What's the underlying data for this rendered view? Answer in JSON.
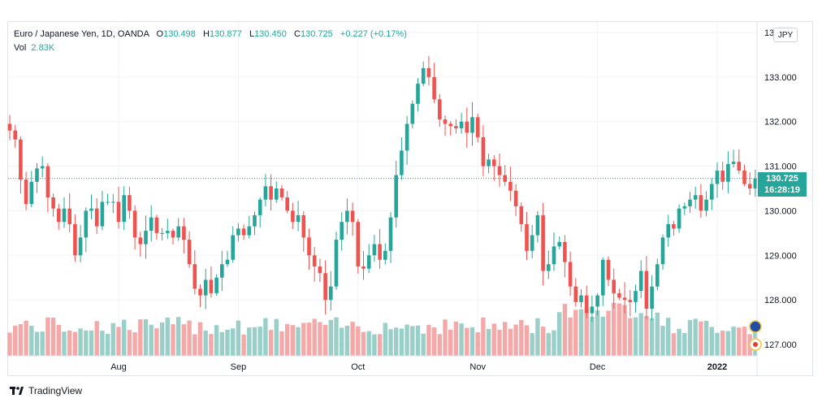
{
  "chart_data": {
    "type": "candlestick",
    "symbol": "Euro / Japanese Yen, 1D, OANDA",
    "ohlc_label": {
      "open_key": "O",
      "open": "130.498",
      "high_key": "H",
      "high": "130.877",
      "low_key": "L",
      "low": "130.450",
      "close_key": "C",
      "close": "130.725",
      "change": "+0.227 (+0.17%)"
    },
    "volume_label": {
      "key": "Vol",
      "value": "2.83K"
    },
    "currency": "JPY",
    "last_price": "130.725",
    "countdown": "16:28:19",
    "y_ticks": [
      "133.000",
      "132.000",
      "131.000",
      "130.000",
      "129.000",
      "128.000",
      "127.000"
    ],
    "y_top_tick": "134.000",
    "y_range": [
      126.75,
      133.75
    ],
    "x_labels": [
      "Aug",
      "Sep",
      "Oct",
      "Nov",
      "Dec",
      "2022"
    ],
    "last_close": 130.725,
    "closes": [
      131.8,
      131.6,
      130.7,
      130.15,
      130.65,
      130.95,
      131.0,
      130.3,
      130.05,
      129.75,
      130.05,
      129.7,
      129.0,
      129.4,
      130.0,
      130.05,
      129.65,
      130.2,
      130.2,
      130.2,
      129.75,
      130.35,
      130.0,
      129.4,
      129.25,
      129.55,
      129.85,
      129.5,
      129.5,
      129.55,
      129.4,
      129.65,
      129.35,
      128.8,
      128.25,
      128.1,
      128.45,
      128.15,
      128.5,
      128.8,
      128.9,
      129.45,
      129.6,
      129.45,
      129.65,
      129.9,
      130.25,
      130.55,
      130.25,
      130.5,
      130.3,
      130.0,
      129.75,
      129.9,
      129.4,
      129.0,
      128.75,
      128.6,
      128.0,
      128.3,
      129.35,
      129.75,
      130.0,
      129.75,
      128.75,
      128.7,
      129.0,
      129.25,
      128.9,
      129.1,
      129.85,
      130.8,
      131.35,
      131.95,
      132.4,
      132.85,
      133.2,
      133.0,
      132.5,
      132.05,
      131.95,
      131.9,
      131.85,
      132.0,
      131.75,
      132.1,
      131.65,
      131.0,
      131.15,
      131.0,
      130.8,
      130.65,
      130.45,
      130.1,
      129.7,
      129.1,
      129.45,
      129.9,
      128.65,
      128.8,
      129.2,
      129.3,
      128.85,
      128.3,
      127.95,
      128.1,
      127.7,
      127.85,
      128.1,
      128.9,
      128.45,
      128.15,
      128.05,
      128.0,
      127.95,
      128.2,
      128.65,
      127.8,
      128.3,
      128.8,
      129.4,
      129.7,
      129.6,
      130.05,
      130.1,
      130.25,
      130.35,
      130.0,
      130.25,
      130.6,
      130.9,
      130.65,
      131.05,
      131.1,
      130.9,
      130.6,
      130.5,
      130.725
    ]
  },
  "footer": {
    "brand": "TradingView"
  },
  "colors": {
    "up": "#26a69a",
    "down": "#ef5350",
    "vol_up": "#99cfc8",
    "vol_down": "#f4a9a8",
    "grid": "#f0f3fa"
  }
}
